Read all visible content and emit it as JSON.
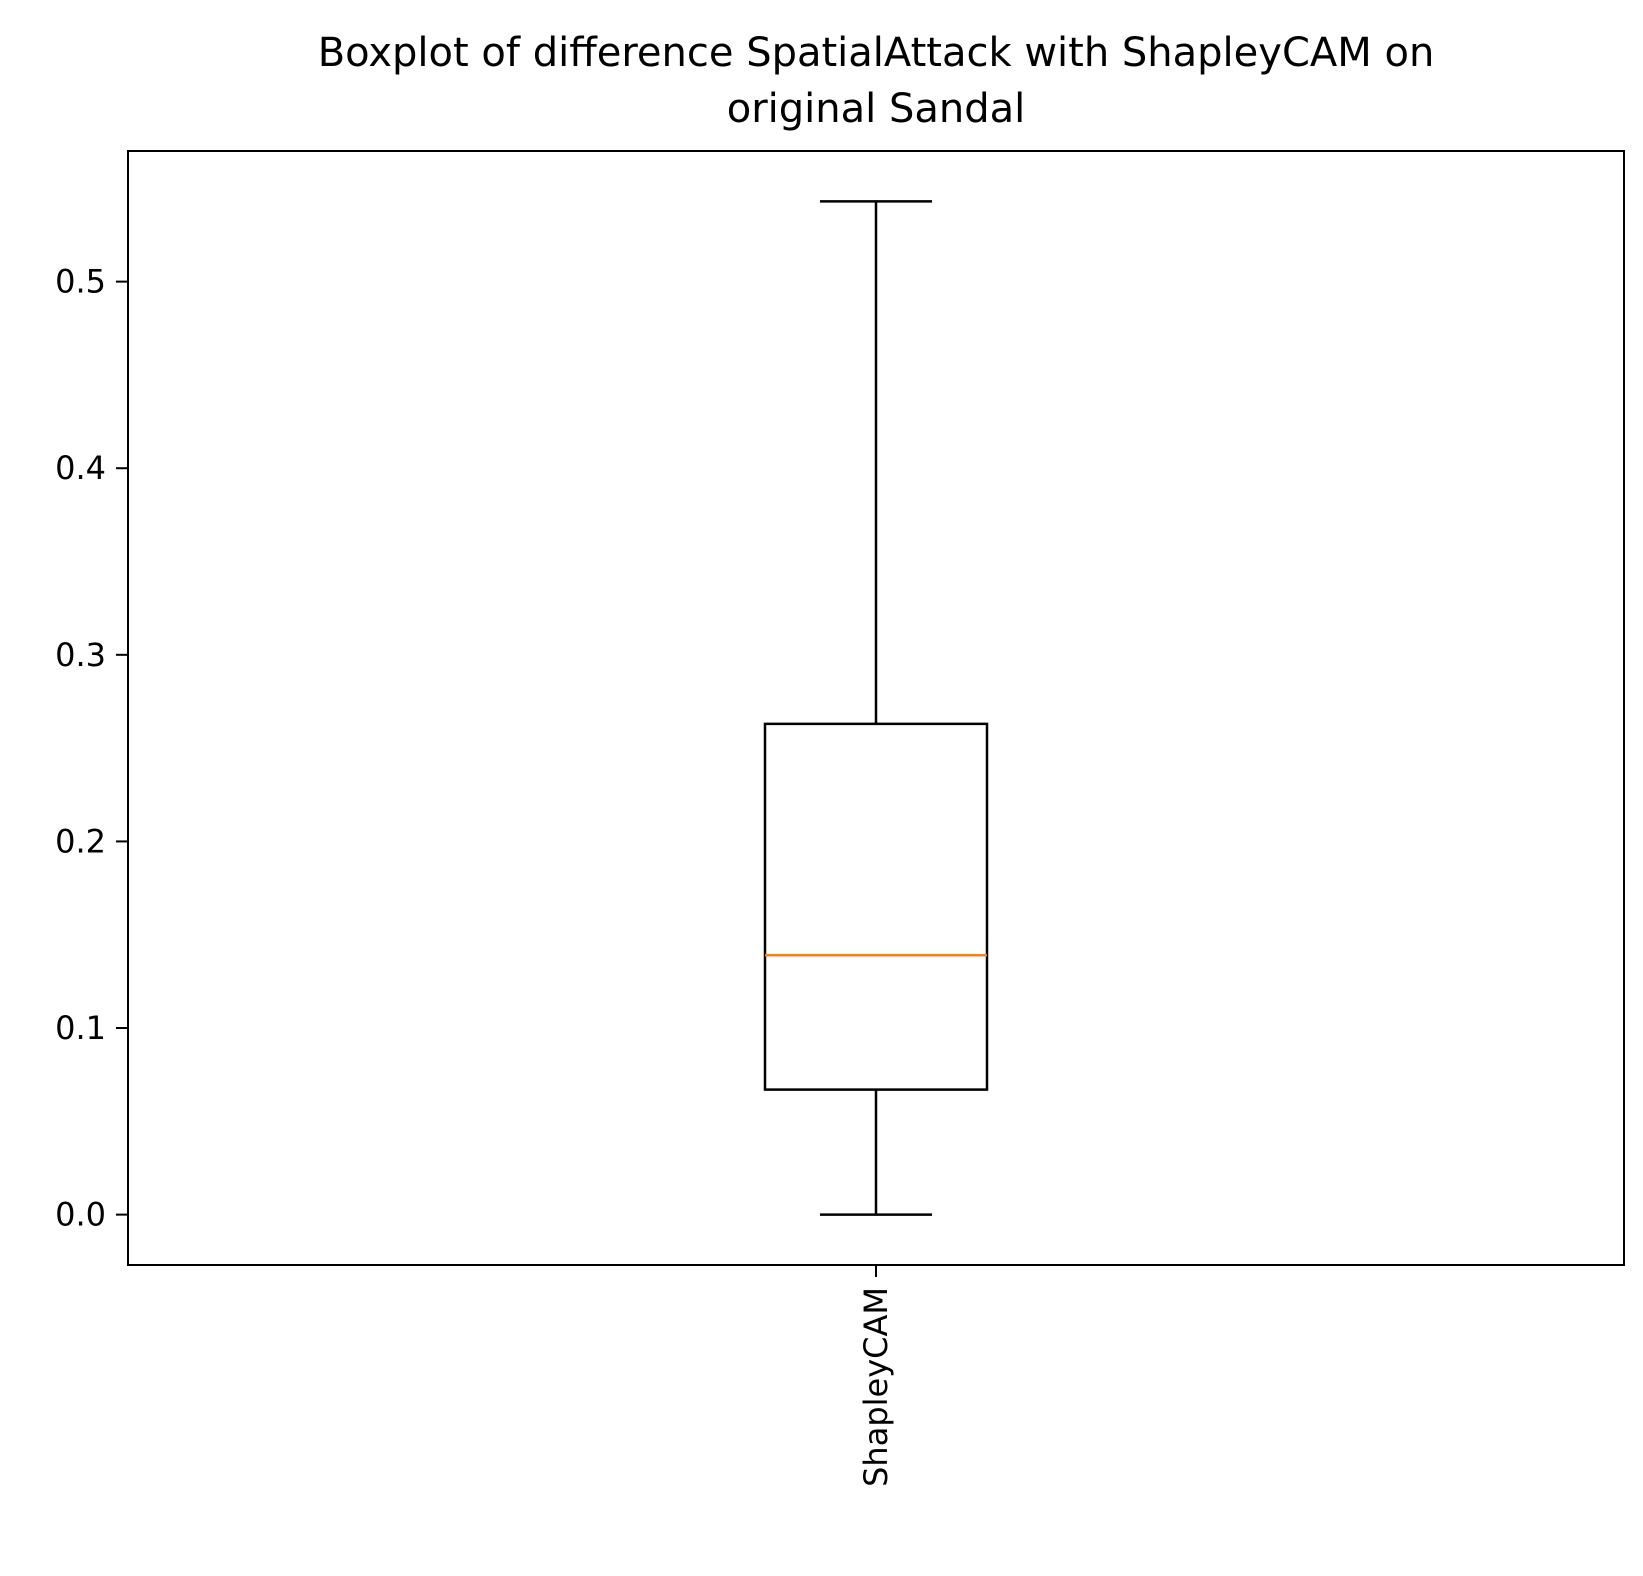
{
  "chart_data": {
    "type": "boxplot",
    "title_lines": [
      "Boxplot of difference SpatialAttack with ShapleyCAM on",
      "original Sandal"
    ],
    "xlabel": "",
    "ylabel": "",
    "categories": [
      "ShapleyCAM"
    ],
    "boxes": [
      {
        "label": "ShapleyCAM",
        "whisker_low": 0.0,
        "q1": 0.067,
        "median": 0.139,
        "q3": 0.263,
        "whisker_high": 0.543
      }
    ],
    "ylim": [
      -0.027,
      0.57
    ],
    "yticks": [
      0.0,
      0.1,
      0.2,
      0.3,
      0.4,
      0.5
    ],
    "ytick_labels": [
      "0.0",
      "0.1",
      "0.2",
      "0.3",
      "0.4",
      "0.5"
    ],
    "x_tick_rotation": "vertical",
    "grid": false,
    "legend": "none",
    "colors": {
      "box": "#000000",
      "median": "#ff7f0e",
      "background": "#ffffff"
    }
  }
}
